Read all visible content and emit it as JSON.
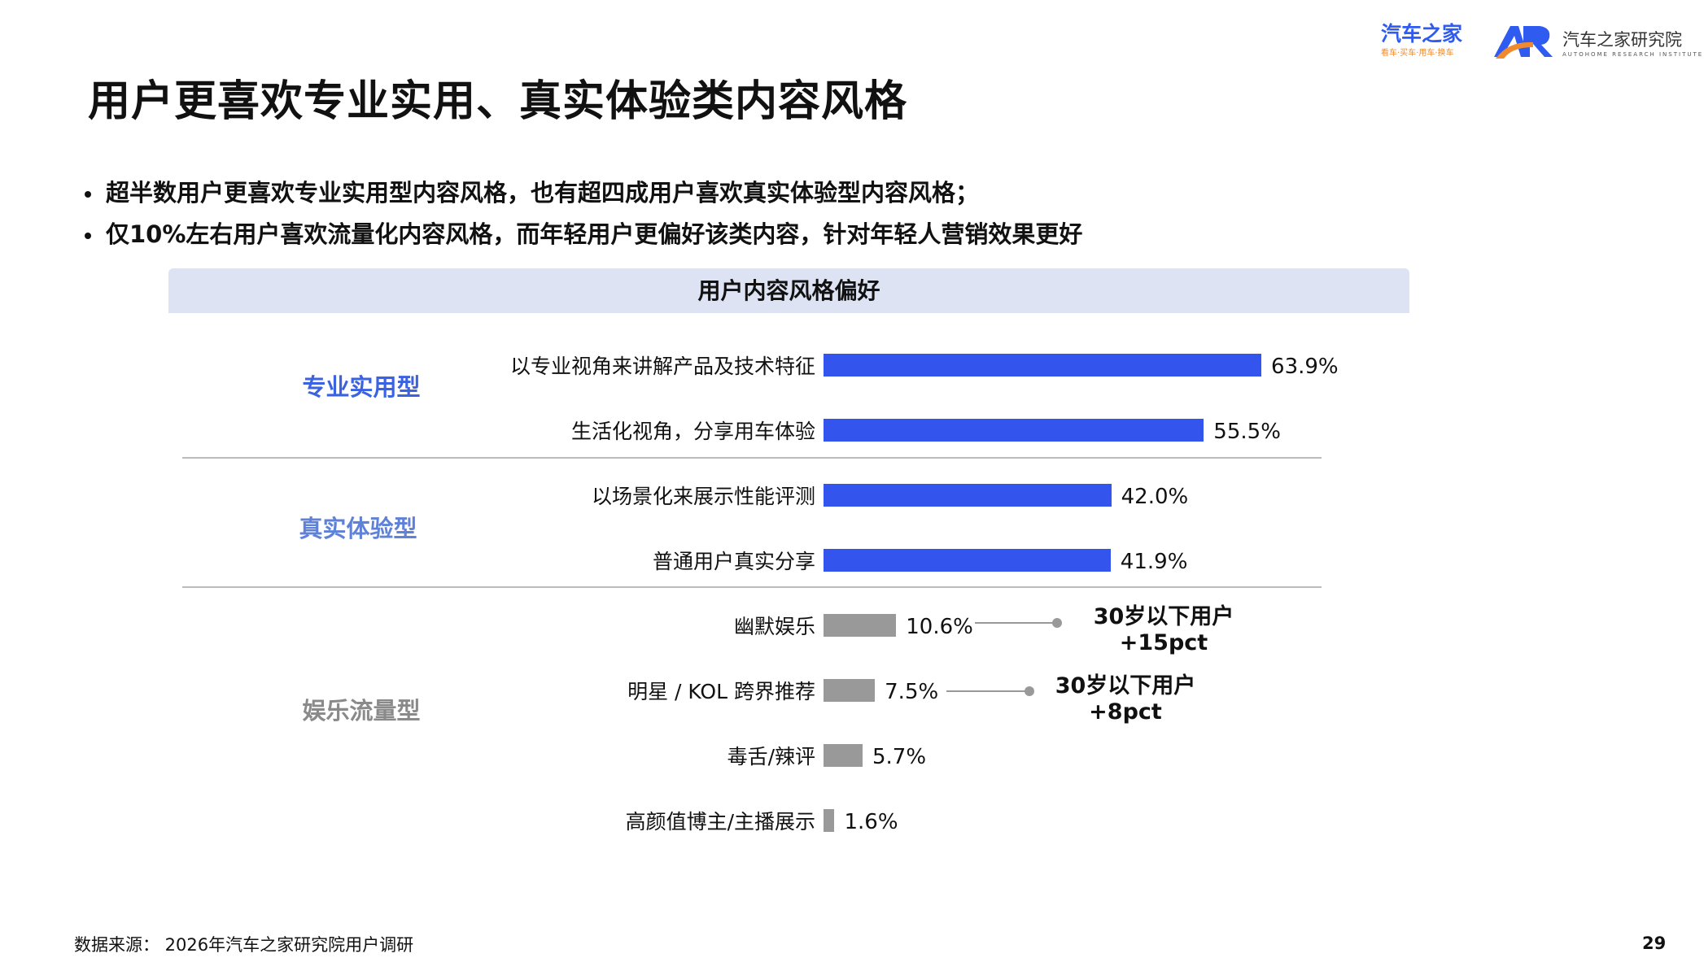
{
  "header": {
    "title": "用户更喜欢专业实用、真实体验类内容风格",
    "logos": {
      "autohome": "汽车之家",
      "autohome_tagline": "看车·买车·用车·换车",
      "institute": "汽车之家研究院",
      "institute_en": "AUTOHOME RESEARCH INSTITUTE"
    }
  },
  "bullets": [
    "超半数用户更喜欢专业实用型内容风格，也有超四成用户喜欢真实体验型内容风格；",
    "仅10%左右用户喜欢流量化内容风格，而年轻用户更偏好该类内容，针对年轻人营销效果更好"
  ],
  "colors": {
    "primary_bar": "#3355ee",
    "secondary_bar": "#999999",
    "cat1": "#3b62e0",
    "cat2": "#5f82d8",
    "cat3": "#8a8a8a",
    "band": "#dde3f3"
  },
  "chart_data": {
    "type": "bar",
    "orientation": "horizontal",
    "title": "用户内容风格偏好",
    "unit": "%",
    "groups": [
      {
        "name": "专业实用型",
        "items": [
          {
            "label": "以专业视角来讲解产品及技术特征",
            "value": 63.9,
            "display": "63.9%"
          },
          {
            "label": "生活化视角，分享用车体验",
            "value": 55.5,
            "display": "55.5%"
          }
        ]
      },
      {
        "name": "真实体验型",
        "items": [
          {
            "label": "以场景化来展示性能评测",
            "value": 42.0,
            "display": "42.0%"
          },
          {
            "label": "普通用户真实分享",
            "value": 41.9,
            "display": "41.9%"
          }
        ]
      },
      {
        "name": "娱乐流量型",
        "items": [
          {
            "label": "幽默娱乐",
            "value": 10.6,
            "display": "10.6%"
          },
          {
            "label": "明星 / KOL 跨界推荐",
            "value": 7.5,
            "display": "7.5%"
          },
          {
            "label": "毒舌/辣评",
            "value": 5.7,
            "display": "5.7%"
          },
          {
            "label": "高颜值博主/主播展示",
            "value": 1.6,
            "display": "1.6%"
          }
        ]
      }
    ],
    "annotations": [
      {
        "target": "幽默娱乐",
        "line1": "30岁以下用户",
        "line2": "+15pct"
      },
      {
        "target": "明星 / KOL 跨界推荐",
        "line1": "30岁以下用户",
        "line2": "+8pct"
      }
    ]
  },
  "footer": {
    "source": "数据来源：  2026年汽车之家研究院用户调研",
    "page_number": "29"
  }
}
